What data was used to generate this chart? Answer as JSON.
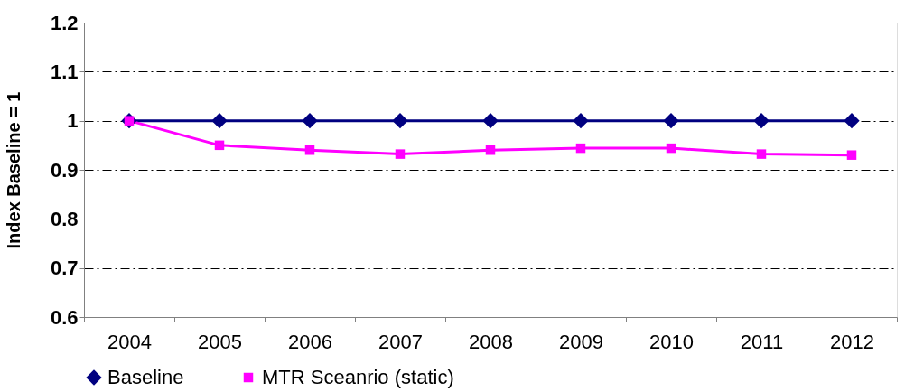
{
  "chart_data": {
    "type": "line",
    "ylabel": "Index Baseline = 1",
    "categories": [
      "2004",
      "2005",
      "2006",
      "2007",
      "2008",
      "2009",
      "2010",
      "2011",
      "2012"
    ],
    "series": [
      {
        "name": "Baseline",
        "color": "#000080",
        "marker": "diamond",
        "values": [
          1,
          1,
          1,
          1,
          1,
          1,
          1,
          1,
          1
        ]
      },
      {
        "name": "MTR Sceanrio (static)",
        "color": "#ff00ff",
        "marker": "square",
        "values": [
          1,
          0.95,
          0.94,
          0.932,
          0.94,
          0.944,
          0.944,
          0.932,
          0.93
        ]
      }
    ],
    "ylim": [
      0.6,
      1.2
    ],
    "yticks": [
      0.6,
      0.7,
      0.8,
      0.9,
      1,
      1.1,
      1.2
    ],
    "grid": "y",
    "legend": "bottom"
  }
}
